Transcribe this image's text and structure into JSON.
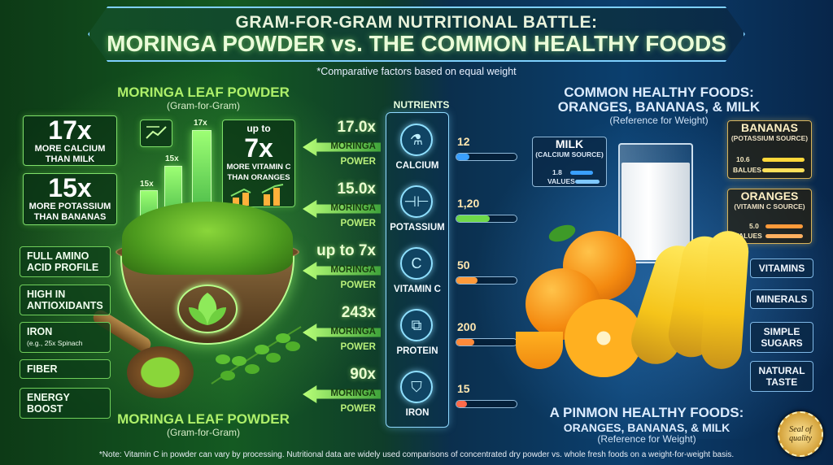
{
  "header": {
    "title_line1": "GRAM-FOR-GRAM NUTRITIONAL BATTLE:",
    "title_line2": "MORINGA POWDER vs. THE COMMON HEALTHY FOODS",
    "subtitle": "*Comparative factors based on equal weight"
  },
  "left": {
    "heading": "MORINGA LEAF POWDER",
    "heading_sub": "(Gram-for-Gram)",
    "calcium_card": {
      "value": "17x",
      "line1": "MORE CALCIUM",
      "line2": "THAN MILK"
    },
    "potassium_card": {
      "value": "15x",
      "line1": "MORE POTASSIUM",
      "line2": "THAN BANANAS"
    },
    "vitc_card": {
      "prefix": "up to",
      "value": "7x",
      "line1": "MORE VITAMIN C",
      "line2": "THAN ORANGES"
    },
    "bar_labels": [
      "15x",
      "15x",
      "17x"
    ],
    "pills": [
      {
        "line1": "FULL AMINO",
        "line2": "ACID PROFILE"
      },
      {
        "line1": "HIGH IN",
        "line2": "ANTIOXIDANTS"
      },
      {
        "line1": "IRON",
        "line2": "(e.g., 25x Spinach"
      },
      {
        "line1": "FIBER",
        "line2": ""
      },
      {
        "line1": "ENERGY BOOST",
        "line2": ""
      }
    ],
    "bottom_heading": "MORINGA LEAF POWDER",
    "bottom_sub": "(Gram-for-Gram)"
  },
  "nutrients": {
    "header": "NUTRIENTS",
    "rows": [
      {
        "mult": "17.0x",
        "moringa": "MORINGA",
        "power": "POWER",
        "icon": "flask-icon",
        "label": "CALCIUM",
        "value": "12",
        "fill": 0.22,
        "color": "#3aa0ff"
      },
      {
        "mult": "15.0x",
        "moringa": "MORINGA",
        "power": "POWER",
        "icon": "dumbbell-icon",
        "label": "POTASSIUM",
        "value": "1,20",
        "fill": 0.55,
        "color": "#6fd84a"
      },
      {
        "mult": "up to 7x",
        "moringa": "MORINGA",
        "power": "POWER",
        "icon": "vitamin-c-icon",
        "label": "VITAMIN C",
        "value": "50",
        "fill": 0.35,
        "color": "#ff9a3a"
      },
      {
        "mult": "243x",
        "moringa": "MORINGA",
        "power": "POWER",
        "icon": "protein-icon",
        "label": "PROTEIN",
        "value": "200",
        "fill": 0.3,
        "color": "#ff8a3a"
      },
      {
        "mult": "90x",
        "moringa": "MORINGA",
        "power": "POWER",
        "icon": "shield-icon",
        "label": "IRON",
        "value": "15",
        "fill": 0.18,
        "color": "#ff6a4a"
      }
    ]
  },
  "right": {
    "heading_line1": "COMMON HEALTHY FOODS:",
    "heading_line2": "ORANGES, BANANAS, & MILK",
    "heading_sub": "(Reference for Weight)",
    "milk_card": {
      "title": "MILK",
      "sub": "(CALCIUM SOURCE)",
      "v1": "1.8",
      "v2": "VALUES"
    },
    "bananas_card": {
      "title": "BANANAS",
      "sub": "(POTASSIUM SOURCE)",
      "v1": "10.6",
      "v2": "BALUES"
    },
    "oranges_card": {
      "title": "ORANGES",
      "sub": "(VITAMIN C SOURCE)",
      "v1": "5.0",
      "v2": "VALUES"
    },
    "pills": [
      {
        "line1": "VITAMINS",
        "line2": ""
      },
      {
        "line1": "MINERALS",
        "line2": ""
      },
      {
        "line1": "SIMPLE",
        "line2": "SUGARS"
      },
      {
        "line1": "NATURAL",
        "line2": "TASTE"
      }
    ],
    "bottom_line1": "A PINMON HEALTHY FOODS:",
    "bottom_line2": "ORANGES, BANANAS, & MILK",
    "bottom_sub": "(Reference for Weight)"
  },
  "seal": {
    "line1": "Seal of",
    "line2": "quality"
  },
  "footnote": "*Note: Vitamin C in powder can vary by processing. Nutritional data are widely used comparisons of concentrated dry powder vs. whole fresh foods on a weight-for-weight basis."
}
